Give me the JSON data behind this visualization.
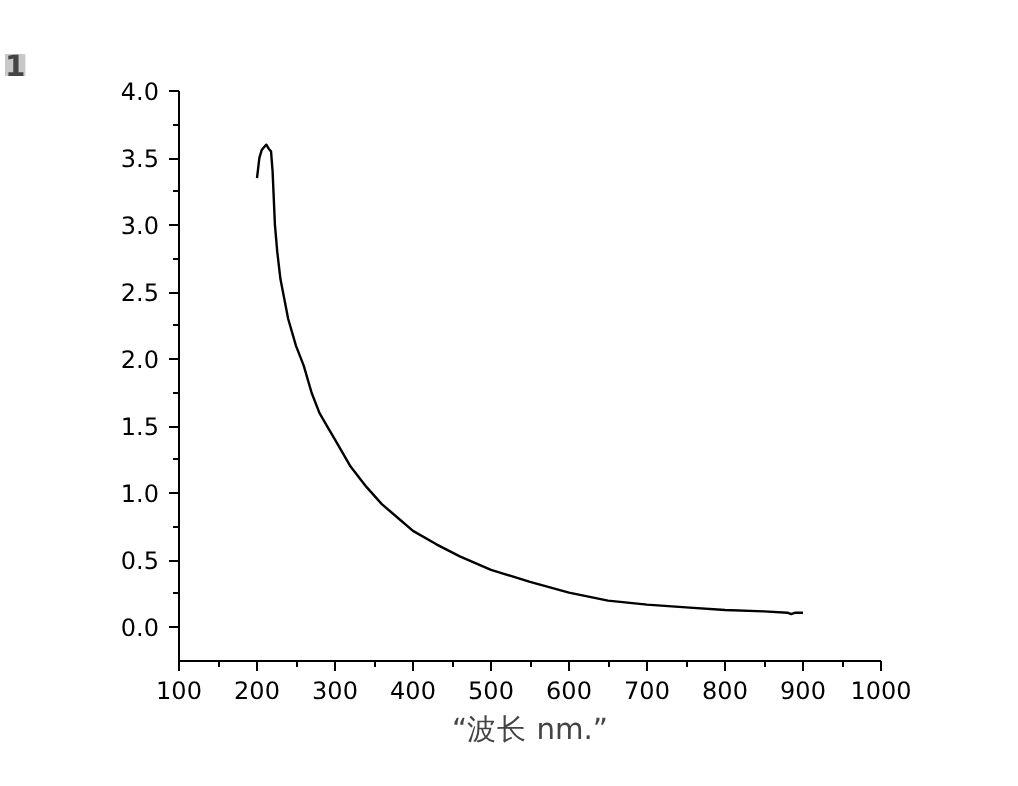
{
  "chart_data": {
    "type": "line",
    "xlabel": "“波长 nm.”",
    "annotations": [
      "1"
    ],
    "x": [
      200,
      203,
      206,
      209,
      212,
      215,
      218,
      220,
      223,
      226,
      230,
      235,
      240,
      250,
      260,
      270,
      280,
      290,
      300,
      320,
      340,
      360,
      380,
      400,
      430,
      460,
      500,
      550,
      600,
      650,
      700,
      750,
      800,
      850,
      880,
      885,
      890,
      900
    ],
    "series": [
      {
        "color": "#000000",
        "values": [
          3.35,
          3.5,
          3.56,
          3.58,
          3.6,
          3.57,
          3.55,
          3.4,
          3.0,
          2.8,
          2.6,
          2.45,
          2.3,
          2.1,
          1.95,
          1.75,
          1.6,
          1.5,
          1.4,
          1.2,
          1.05,
          0.92,
          0.82,
          0.72,
          0.62,
          0.53,
          0.43,
          0.34,
          0.26,
          0.2,
          0.17,
          0.15,
          0.13,
          0.12,
          0.11,
          0.1,
          0.11,
          0.11
        ]
      }
    ],
    "xlim": [
      100,
      1000
    ],
    "ylim": [
      -0.25,
      4.0
    ],
    "xticks": [
      100,
      200,
      300,
      400,
      500,
      600,
      700,
      800,
      900,
      1000
    ],
    "yticks": [
      {
        "value": 0,
        "label": "0.0"
      },
      {
        "value": 0.5,
        "label": "0.5"
      },
      {
        "value": 1,
        "label": "1.0"
      },
      {
        "value": 1.5,
        "label": "1.5"
      },
      {
        "value": 2,
        "label": "2.0"
      },
      {
        "value": 2.5,
        "label": "2.5"
      },
      {
        "value": 3,
        "label": "3.0"
      },
      {
        "value": 3.5,
        "label": "3.5"
      },
      {
        "value": 4,
        "label": "4.0"
      }
    ],
    "grid": false,
    "line_style": "solid"
  }
}
